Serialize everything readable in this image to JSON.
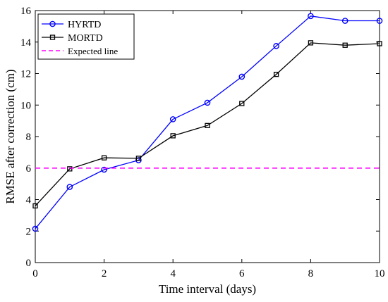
{
  "chart_data": {
    "type": "line",
    "xlabel": "Time interval (days)",
    "ylabel": "RMSE after correction (cm)",
    "xlim": [
      0,
      10
    ],
    "ylim": [
      0,
      16
    ],
    "x_ticks": [
      0,
      2,
      4,
      6,
      8,
      10
    ],
    "y_ticks": [
      0,
      2,
      4,
      6,
      8,
      10,
      12,
      14,
      16
    ],
    "grid": false,
    "legend_position": "top-left",
    "series": [
      {
        "name": "HYRTD",
        "color": "#0000ff",
        "marker": "circle",
        "line_style": "solid",
        "x": [
          0,
          1,
          2,
          3,
          4,
          5,
          6,
          7,
          8,
          9,
          10
        ],
        "y": [
          2.15,
          4.8,
          5.9,
          6.5,
          9.1,
          10.15,
          11.8,
          13.75,
          15.65,
          15.35,
          15.35
        ]
      },
      {
        "name": "MORTD",
        "color": "#000000",
        "marker": "square",
        "line_style": "solid",
        "x": [
          0,
          1,
          2,
          3,
          4,
          5,
          6,
          7,
          8,
          9,
          10
        ],
        "y": [
          3.6,
          5.95,
          6.65,
          6.62,
          8.05,
          8.7,
          10.1,
          11.95,
          13.95,
          13.8,
          13.9
        ]
      },
      {
        "name": "Expected line",
        "color": "#ff00ff",
        "marker": "none",
        "line_style": "dashed",
        "x": [
          0,
          10
        ],
        "y": [
          6,
          6
        ]
      }
    ]
  }
}
